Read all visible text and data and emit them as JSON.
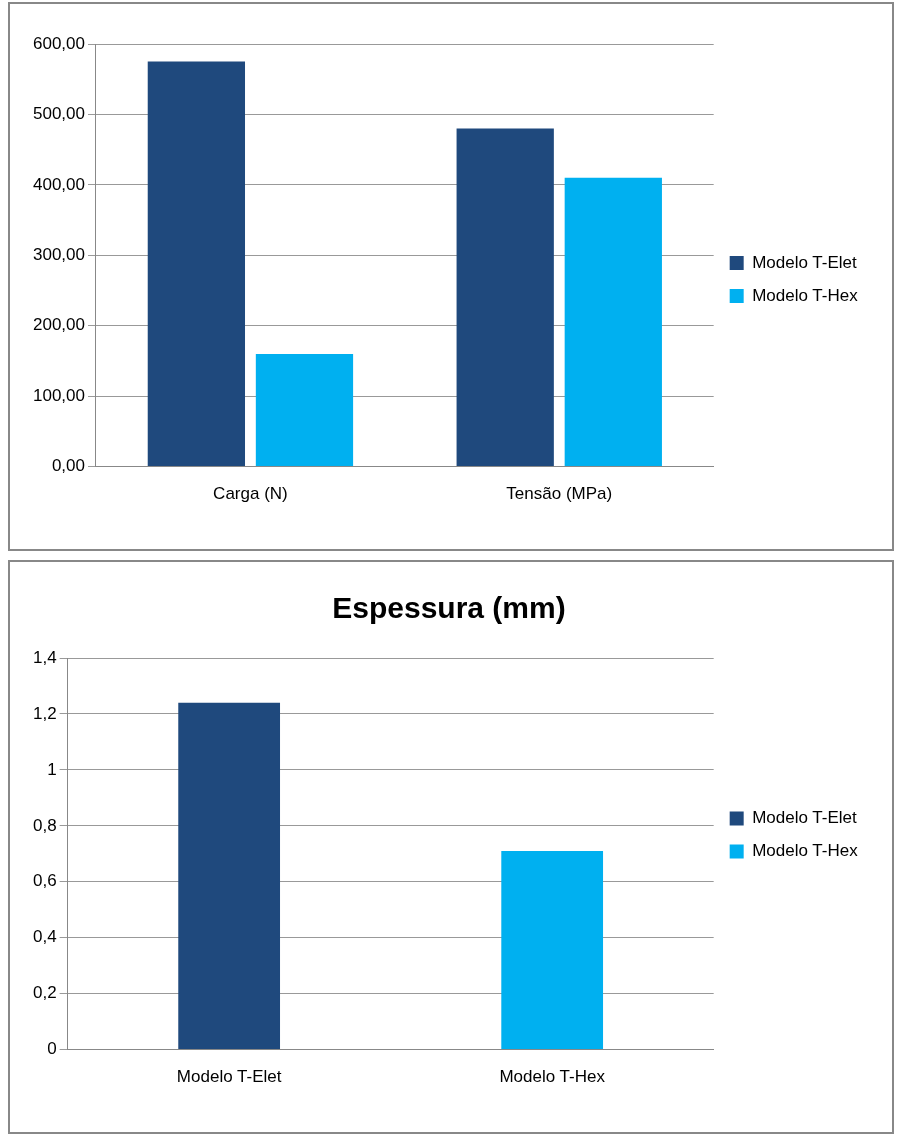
{
  "chart_data": [
    {
      "type": "bar",
      "categories": [
        "Carga (N)",
        "Tensão (MPa)"
      ],
      "series": [
        {
          "name": "Modelo T-Elet",
          "color": "#1f497d",
          "values": [
            575,
            480
          ]
        },
        {
          "name": "Modelo T-Hex",
          "color": "#00b0f0",
          "values": [
            160,
            410
          ]
        }
      ],
      "ylim": [
        0,
        600
      ],
      "yticks": [
        {
          "value": 0,
          "label": "0,00"
        },
        {
          "value": 100,
          "label": "100,00"
        },
        {
          "value": 200,
          "label": "200,00"
        },
        {
          "value": 300,
          "label": "300,00"
        },
        {
          "value": 400,
          "label": "400,00"
        },
        {
          "value": 500,
          "label": "500,00"
        },
        {
          "value": 600,
          "label": "600,00"
        }
      ],
      "grid": "y",
      "legend": "right"
    },
    {
      "type": "bar",
      "title": "Espessura (mm)",
      "categories": [
        "Modelo T-Elet",
        "Modelo T-Hex"
      ],
      "series": [
        {
          "name": "Modelo T-Elet",
          "color": "#1f497d",
          "values": [
            1.24,
            null
          ]
        },
        {
          "name": "Modelo T-Hex",
          "color": "#00b0f0",
          "values": [
            null,
            0.71
          ]
        }
      ],
      "ylim": [
        0,
        1.4
      ],
      "yticks": [
        0,
        {
          "value": 0.2,
          "label": "0,2"
        },
        {
          "value": 0.4,
          "label": "0,4"
        },
        {
          "value": 0.6,
          "label": "0,6"
        },
        {
          "value": 0.8,
          "label": "0,8"
        },
        1,
        {
          "value": 1.2,
          "label": "1,2"
        },
        {
          "value": 1.4,
          "label": "1,4"
        }
      ],
      "grid": "y",
      "legend": "right"
    }
  ]
}
